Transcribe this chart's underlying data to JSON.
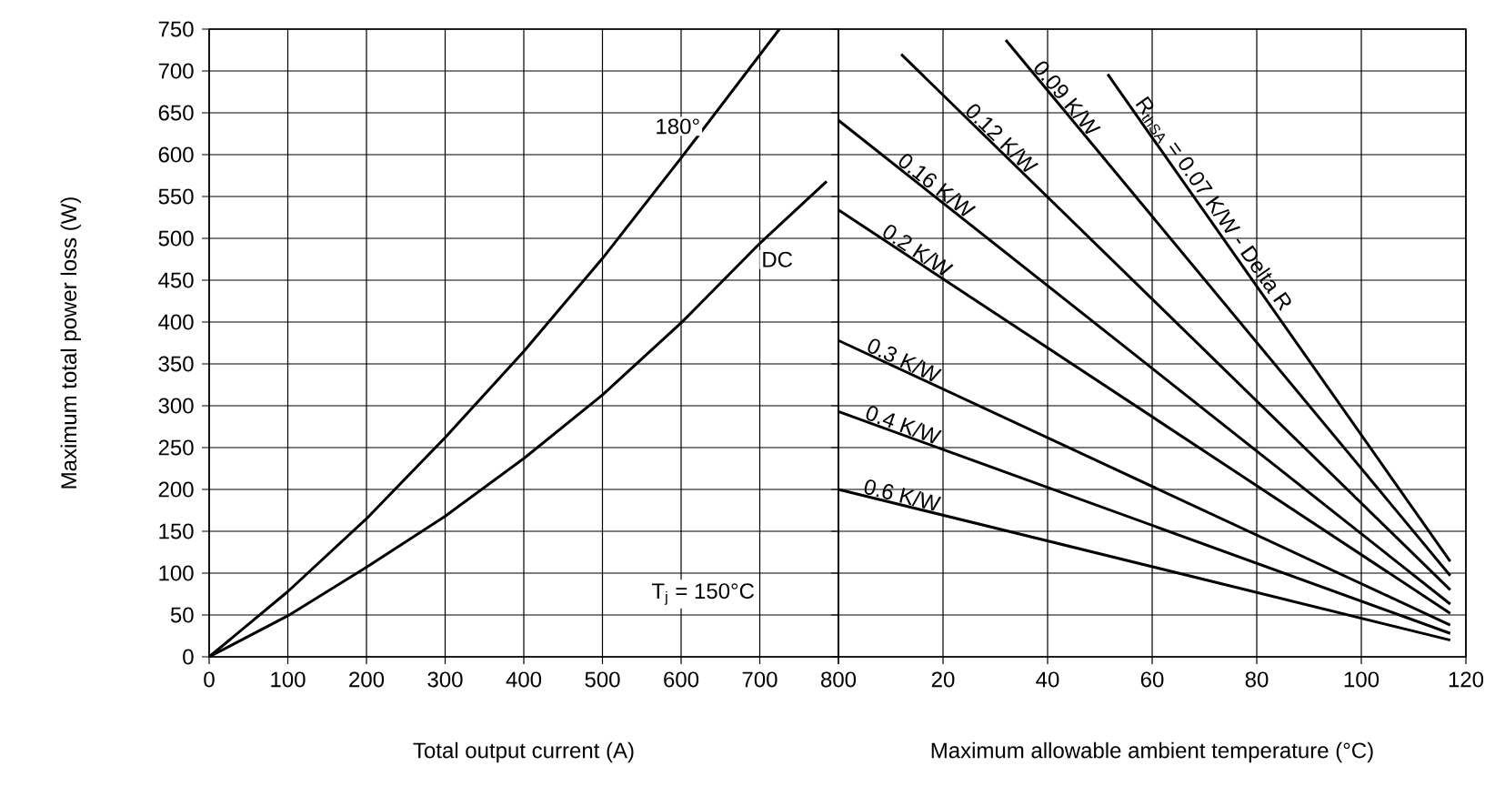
{
  "chart_data": [
    {
      "type": "line",
      "xlabel": "Total output current (A)",
      "ylabel": "Maximum total power loss (W)",
      "xlim": [
        0,
        800
      ],
      "ylim": [
        0,
        750
      ],
      "xticks": [
        0,
        100,
        200,
        300,
        400,
        500,
        600,
        700,
        800
      ],
      "yticks": [
        0,
        50,
        100,
        150,
        200,
        250,
        300,
        350,
        400,
        450,
        500,
        550,
        600,
        650,
        700,
        750
      ],
      "grid": true,
      "series": [
        {
          "name": "180°",
          "color": "#000000",
          "x": [
            0,
            100,
            200,
            300,
            400,
            500,
            600,
            725
          ],
          "values": [
            0,
            78,
            165,
            262,
            365,
            476,
            596,
            750
          ]
        },
        {
          "name": "DC",
          "color": "#000000",
          "x": [
            0,
            100,
            200,
            300,
            400,
            500,
            600,
            700,
            785
          ],
          "values": [
            0,
            49,
            107,
            168,
            237,
            313,
            399,
            494,
            568
          ]
        }
      ],
      "annotations": [
        "T$_{j}$ = 150°C"
      ]
    },
    {
      "type": "line",
      "xlabel": "Maximum allowable ambient temperature (°C)",
      "xlim": [
        0,
        120
      ],
      "ylim": [
        0,
        750
      ],
      "xticks": [
        {
          "value": 0,
          "label": null
        },
        20,
        40,
        60,
        80,
        100,
        120
      ],
      "yticks": [
        0,
        50,
        100,
        150,
        200,
        250,
        300,
        350,
        400,
        450,
        500,
        550,
        600,
        650,
        700,
        750
      ],
      "grid": true,
      "tick_labels": "x",
      "series": [
        {
          "name": "0.6 K/W",
          "color": "#000000",
          "x": [
            0,
            117
          ],
          "values": [
            200,
            20
          ]
        },
        {
          "name": "0.4 K/W",
          "color": "#000000",
          "x": [
            0,
            117
          ],
          "values": [
            293,
            28
          ]
        },
        {
          "name": "0.3 K/W",
          "color": "#000000",
          "x": [
            0,
            117
          ],
          "values": [
            378,
            38
          ]
        },
        {
          "name": "0.2 K/W",
          "color": "#000000",
          "x": [
            0,
            117
          ],
          "values": [
            534,
            52
          ]
        },
        {
          "name": "0.16 K/W",
          "color": "#000000",
          "x": [
            0,
            117
          ],
          "values": [
            641,
            63
          ]
        },
        {
          "name": "0.12 K/W",
          "color": "#000000",
          "x": [
            12,
            117
          ],
          "values": [
            720,
            80
          ]
        },
        {
          "name": "0.09 K/W",
          "color": "#000000",
          "x": [
            32,
            117
          ],
          "values": [
            737,
            97
          ]
        },
        {
          "name": "R$_{thSA}$ = 0.07 K/W - Delta R",
          "color": "#000000",
          "x": [
            51.5,
            117
          ],
          "values": [
            696,
            114
          ]
        }
      ]
    }
  ]
}
